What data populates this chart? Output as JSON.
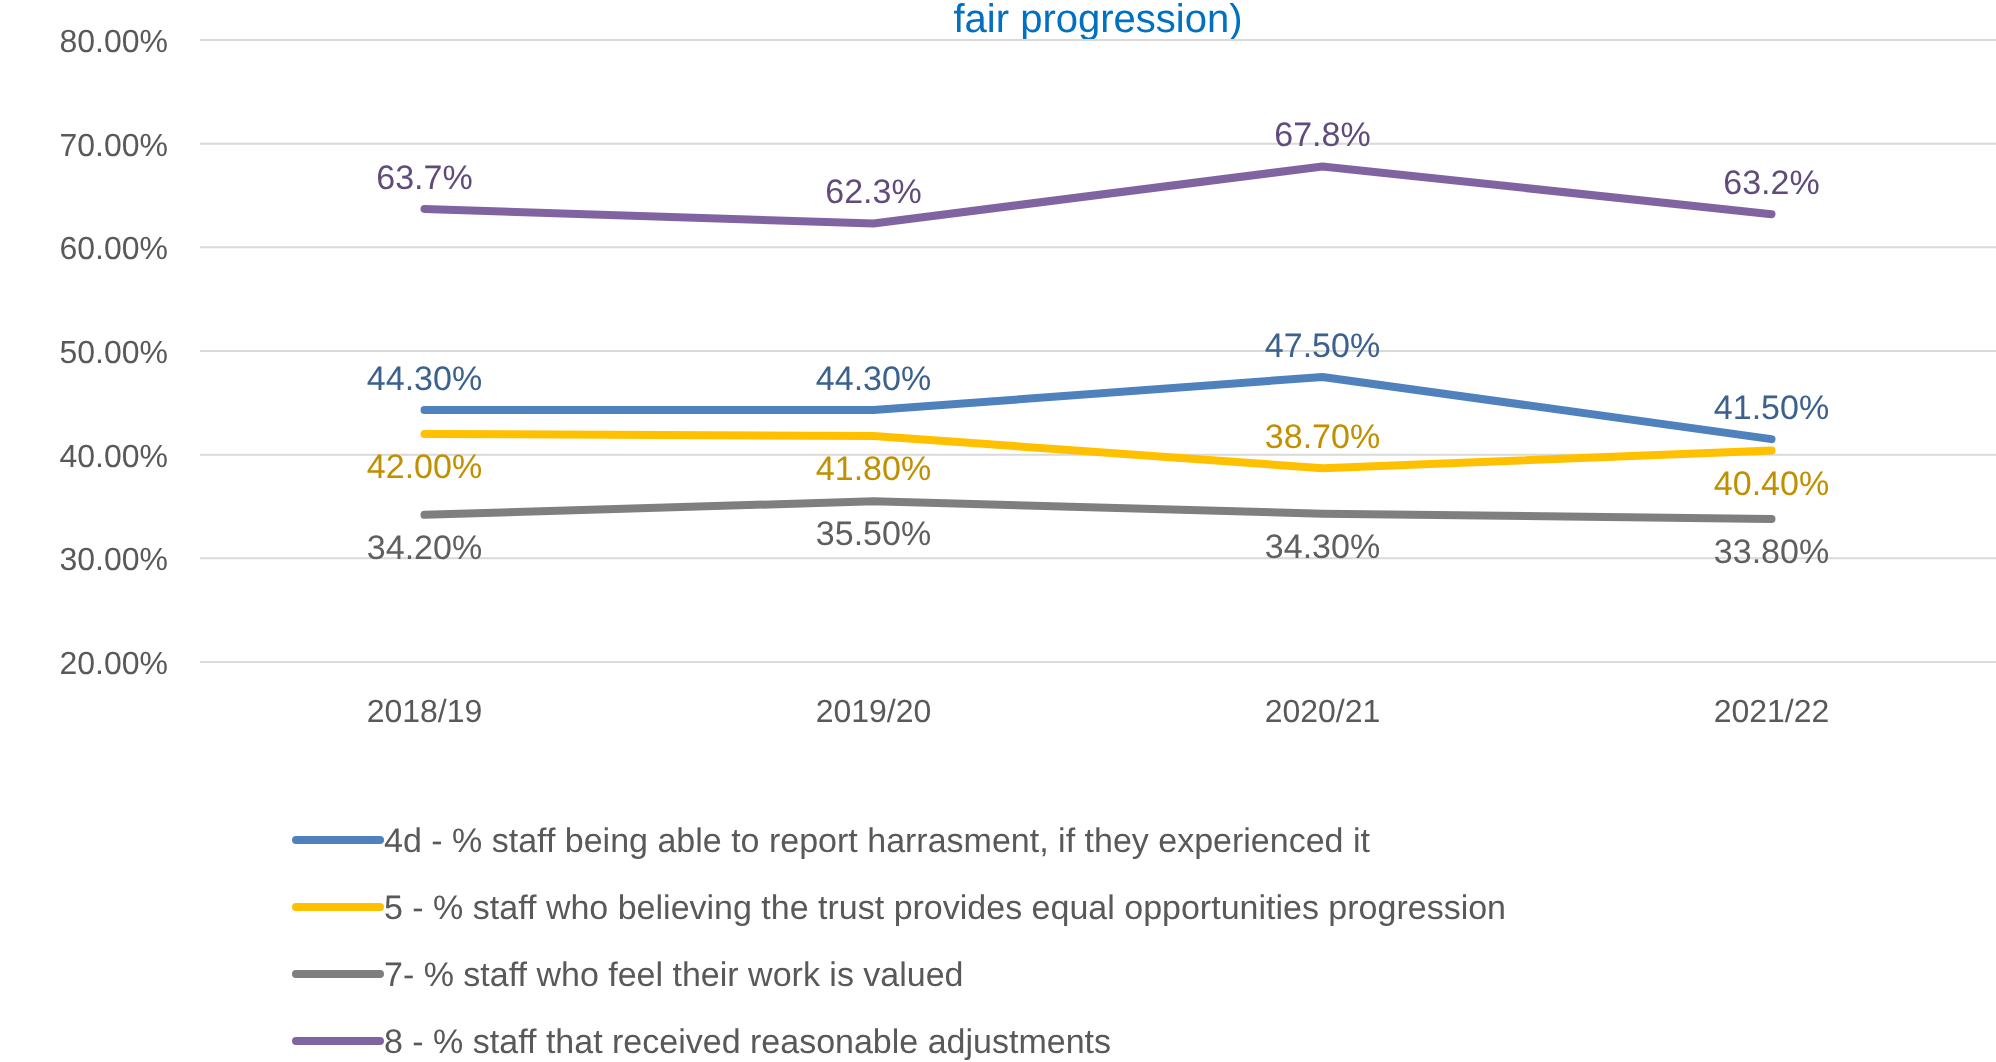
{
  "chart_data": {
    "type": "line",
    "title": "fair progression)",
    "categories": [
      "2018/19",
      "2019/20",
      "2020/21",
      "2021/22"
    ],
    "series": [
      {
        "name": "4d - % staff being able to report harrasment, if they experienced it",
        "color": "#4f81bd",
        "values": [
          44.3,
          44.3,
          47.5,
          41.5
        ],
        "value_labels": [
          "44.30%",
          "44.30%",
          "47.50%",
          "41.50%"
        ]
      },
      {
        "name": "5 - % staff who believing the trust provides equal opportunities  progression",
        "color": "#ffc000",
        "values": [
          42.0,
          41.8,
          38.7,
          40.4
        ],
        "value_labels": [
          "42.00%",
          "41.80%",
          "38.70%",
          "40.40%"
        ]
      },
      {
        "name": "7- % staff who feel their work is valued",
        "color": "#7f7f7f",
        "values": [
          34.2,
          35.5,
          34.3,
          33.8
        ],
        "value_labels": [
          "34.20%",
          "35.50%",
          "34.30%",
          "33.80%"
        ]
      },
      {
        "name": "8 - %  staff that received reasonable adjustments",
        "color": "#8064a2",
        "values": [
          63.7,
          62.3,
          67.8,
          63.2
        ],
        "value_labels": [
          "63.7%",
          "62.3%",
          "67.8%",
          "63.2%"
        ]
      }
    ],
    "ylim": [
      20,
      80
    ],
    "yticks": [
      {
        "value": 20,
        "label": "20.00%"
      },
      {
        "value": 30,
        "label": "30.00%"
      },
      {
        "value": 40,
        "label": "40.00%"
      },
      {
        "value": 50,
        "label": "50.00%"
      },
      {
        "value": 60,
        "label": "60.00%"
      },
      {
        "value": 70,
        "label": "70.00%"
      },
      {
        "value": 80,
        "label": "80.00%"
      }
    ],
    "grid": "y",
    "legend": "bottom",
    "marker": "none",
    "line_style": "solid"
  }
}
